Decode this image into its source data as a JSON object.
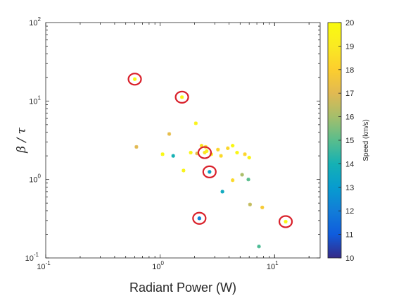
{
  "chart_data": {
    "type": "scatter",
    "title": "",
    "xlabel": "Radiant Power (W)",
    "ylabel": "β / τ",
    "x_scale": "log",
    "y_scale": "log",
    "xlim": [
      0.1,
      25
    ],
    "ylim": [
      0.1,
      100
    ],
    "x_ticks": [
      {
        "value": 0.1,
        "base": "10",
        "exp": "-1"
      },
      {
        "value": 1,
        "base": "10",
        "exp": "0"
      },
      {
        "value": 10,
        "base": "10",
        "exp": "1"
      }
    ],
    "y_ticks": [
      {
        "value": 0.1,
        "base": "10",
        "exp": "-1"
      },
      {
        "value": 1,
        "base": "10",
        "exp": "0"
      },
      {
        "value": 10,
        "base": "10",
        "exp": "1"
      },
      {
        "value": 100,
        "base": "10",
        "exp": "2"
      }
    ],
    "grid": false,
    "colorbar": {
      "label": "Speed (km/s)",
      "min": 10,
      "max": 20,
      "ticks": [
        "10",
        "11",
        "12",
        "13",
        "14",
        "15",
        "16",
        "17",
        "18",
        "19",
        "20"
      ],
      "colormap": "parula"
    },
    "highlight_color": "#d9202a",
    "points": [
      {
        "x": 0.6,
        "y": 19.0,
        "speed": 19.8,
        "circled": true
      },
      {
        "x": 1.55,
        "y": 11.2,
        "speed": 19.6,
        "circled": true
      },
      {
        "x": 2.45,
        "y": 2.2,
        "speed": 18.7,
        "circled": true
      },
      {
        "x": 2.7,
        "y": 1.25,
        "speed": 19.6,
        "circled": true
      },
      {
        "x": 2.2,
        "y": 0.32,
        "speed": 12.0,
        "circled": true
      },
      {
        "x": 12.5,
        "y": 0.29,
        "speed": 19.8,
        "circled": true
      },
      {
        "x": 2.7,
        "y": 1.25,
        "speed": 13.0,
        "circled": false
      },
      {
        "x": 2.2,
        "y": 0.32,
        "speed": 12.2,
        "circled": false
      },
      {
        "x": 0.62,
        "y": 2.6,
        "speed": 17.0,
        "circled": false
      },
      {
        "x": 1.05,
        "y": 2.1,
        "speed": 19.8,
        "circled": false
      },
      {
        "x": 1.2,
        "y": 3.8,
        "speed": 17.2,
        "circled": false
      },
      {
        "x": 1.3,
        "y": 2.0,
        "speed": 14.0,
        "circled": false
      },
      {
        "x": 1.6,
        "y": 1.3,
        "speed": 19.6,
        "circled": false
      },
      {
        "x": 1.85,
        "y": 2.2,
        "speed": 19.7,
        "circled": false
      },
      {
        "x": 2.05,
        "y": 5.2,
        "speed": 19.5,
        "circled": false
      },
      {
        "x": 2.1,
        "y": 2.15,
        "speed": 17.2,
        "circled": false
      },
      {
        "x": 2.3,
        "y": 2.7,
        "speed": 18.8,
        "circled": false
      },
      {
        "x": 2.5,
        "y": 2.6,
        "speed": 18.5,
        "circled": false
      },
      {
        "x": 2.55,
        "y": 2.3,
        "speed": 19.4,
        "circled": false
      },
      {
        "x": 2.8,
        "y": 2.1,
        "speed": 19.2,
        "circled": false
      },
      {
        "x": 3.2,
        "y": 2.4,
        "speed": 18.3,
        "circled": false
      },
      {
        "x": 3.4,
        "y": 2.0,
        "speed": 18.4,
        "circled": false
      },
      {
        "x": 3.5,
        "y": 0.7,
        "speed": 13.6,
        "circled": false
      },
      {
        "x": 3.9,
        "y": 2.5,
        "speed": 18.3,
        "circled": false
      },
      {
        "x": 4.3,
        "y": 2.7,
        "speed": 19.8,
        "circled": false
      },
      {
        "x": 4.3,
        "y": 0.98,
        "speed": 18.4,
        "circled": false
      },
      {
        "x": 4.7,
        "y": 2.2,
        "speed": 19.7,
        "circled": false
      },
      {
        "x": 5.2,
        "y": 1.15,
        "speed": 16.1,
        "circled": false
      },
      {
        "x": 5.5,
        "y": 2.1,
        "speed": 18.2,
        "circled": false
      },
      {
        "x": 5.9,
        "y": 1.0,
        "speed": 15.0,
        "circled": false
      },
      {
        "x": 6.0,
        "y": 1.9,
        "speed": 19.6,
        "circled": false
      },
      {
        "x": 6.1,
        "y": 0.48,
        "speed": 16.5,
        "circled": false
      },
      {
        "x": 7.3,
        "y": 0.14,
        "speed": 14.8,
        "circled": false
      },
      {
        "x": 7.8,
        "y": 0.44,
        "speed": 17.8,
        "circled": false
      }
    ]
  }
}
